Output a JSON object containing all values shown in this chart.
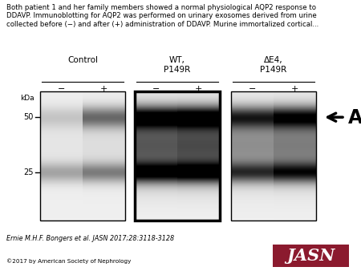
{
  "title_text": "Both patient 1 and her family members showed a normal physiological AQP2 response to\nDDAVP. Immunoblotting for AQP2 was performed on urinary exosomes derived from urine\ncollected before (−) and after (+) administration of DDAVP. Murine immortalized cortical...",
  "group_labels": [
    "Control",
    "WT,\nP149R",
    "ΔE4,\nP149R"
  ],
  "citation": "Ernie M.H.F. Bongers et al. JASN 2017;28:3118-3128",
  "copyright": "©2017 by American Society of Nephrology",
  "jasn_text": "JASN",
  "jasn_bg": "#8B1A2E",
  "bg_color": "#ffffff",
  "groups": [
    {
      "name": "Control",
      "border_lw": 1.0,
      "lanes": [
        {
          "label": "−",
          "band50_intensity": 0.15,
          "band25_intensity": 0.28,
          "smear_intensity": 0.04
        },
        {
          "label": "+",
          "band50_intensity": 0.5,
          "band25_intensity": 0.42,
          "smear_intensity": 0.07
        }
      ]
    },
    {
      "name": "WT,\nP149R",
      "border_lw": 2.5,
      "lanes": [
        {
          "label": "−",
          "band50_intensity": 0.88,
          "band25_intensity": 0.82,
          "smear_intensity": 0.6
        },
        {
          "label": "+",
          "band50_intensity": 0.9,
          "band25_intensity": 0.85,
          "smear_intensity": 0.65
        }
      ]
    },
    {
      "name": "ΔE4,\nP149R",
      "border_lw": 1.0,
      "lanes": [
        {
          "label": "−",
          "band50_intensity": 0.68,
          "band25_intensity": 0.6,
          "smear_intensity": 0.38
        },
        {
          "label": "+",
          "band50_intensity": 0.8,
          "band25_intensity": 0.7,
          "smear_intensity": 0.45
        }
      ]
    }
  ]
}
